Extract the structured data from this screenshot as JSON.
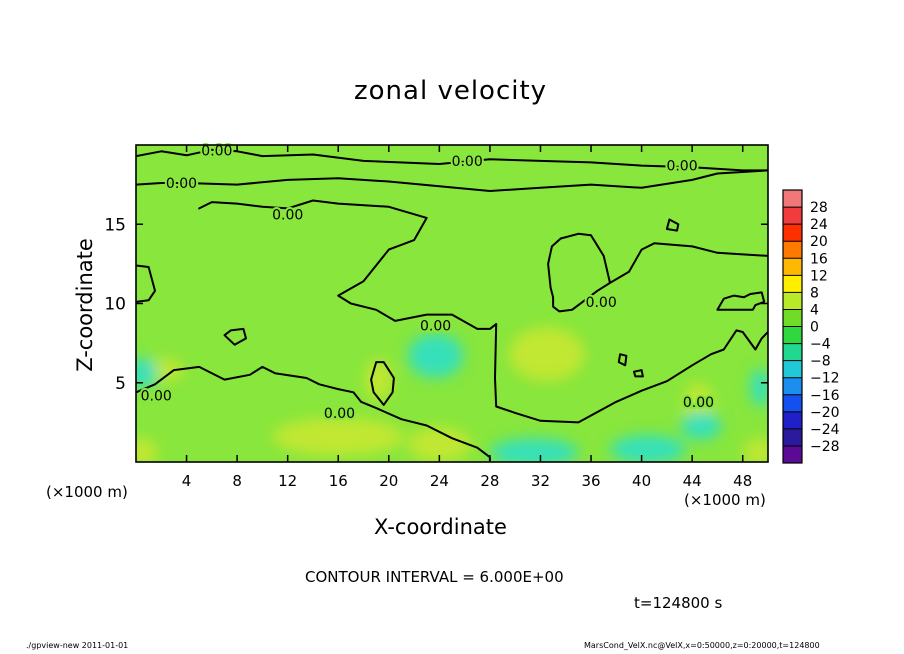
{
  "chart_data": {
    "type": "contour",
    "title": "zonal velocity",
    "xlabel": "X-coordinate",
    "ylabel": "Z-coordinate",
    "x_unit_note_left": "(×1000 m)",
    "x_unit_note_right": "(×1000 m)",
    "xlim": [
      0,
      50
    ],
    "ylim": [
      0,
      20
    ],
    "x_ticks": [
      4,
      8,
      12,
      16,
      20,
      24,
      28,
      32,
      36,
      40,
      44,
      48
    ],
    "y_ticks": [
      5,
      10,
      15
    ],
    "colorbar_levels": [
      28,
      24,
      20,
      16,
      12,
      8,
      4,
      0,
      -4,
      -8,
      -12,
      -16,
      -20,
      -24,
      -28
    ],
    "colorbar_colors": [
      "#f07878",
      "#f03c3c",
      "#ff3000",
      "#ff7a00",
      "#ffb800",
      "#ffee00",
      "#b8ea28",
      "#70dc28",
      "#30d840",
      "#20d890",
      "#20c8d8",
      "#1c8ef0",
      "#1450f0",
      "#2020c8",
      "#2c1a9c",
      "#5a0a94"
    ],
    "contour_label": "0.00",
    "contour_interval": "CONTOUR INTERVAL = 6.000E+00",
    "time_label": "t=124800 s",
    "footer_left": "./gpview-new   2011-01-01",
    "footer_right": "MarsCond_VelX.nc@VelX,x=0:50000,z=0:20000,t=124800",
    "regions": [
      {
        "kind": "positive",
        "x": 2.2,
        "y": 5.8,
        "rx": 1.6,
        "ry": 0.7
      },
      {
        "kind": "positive",
        "x": 19.2,
        "y": 5.2,
        "rx": 1.1,
        "ry": 1.3
      },
      {
        "kind": "positive",
        "x": 32.5,
        "y": 6.8,
        "rx": 3.0,
        "ry": 1.7
      },
      {
        "kind": "positive",
        "x": 0.5,
        "y": 0.6,
        "rx": 1.2,
        "ry": 0.9
      },
      {
        "kind": "positive",
        "x": 16,
        "y": 1.6,
        "rx": 5.2,
        "ry": 1.2
      },
      {
        "kind": "positive",
        "x": 24,
        "y": 1.1,
        "rx": 2.5,
        "ry": 1.1
      },
      {
        "kind": "positive",
        "x": 49.3,
        "y": 0.6,
        "rx": 1.2,
        "ry": 0.9
      },
      {
        "kind": "positive",
        "x": 44.5,
        "y": 3.6,
        "rx": 1.2,
        "ry": 1.4
      },
      {
        "kind": "negative",
        "x": 23.7,
        "y": 6.7,
        "rx": 2.2,
        "ry": 1.4
      },
      {
        "kind": "negative",
        "x": 31.5,
        "y": 0.6,
        "rx": 3.5,
        "ry": 0.9
      },
      {
        "kind": "negative",
        "x": 0.5,
        "y": 5.6,
        "rx": 1.2,
        "ry": 1.0
      },
      {
        "kind": "negative",
        "x": 44.7,
        "y": 2.3,
        "rx": 1.6,
        "ry": 0.9
      },
      {
        "kind": "negative",
        "x": 49.4,
        "y": 4.7,
        "rx": 0.8,
        "ry": 1.2
      },
      {
        "kind": "negative",
        "x": 40.5,
        "y": 0.8,
        "rx": 3.0,
        "ry": 0.9
      }
    ],
    "contours": [
      {
        "points": [
          [
            0,
            19.3
          ],
          [
            2,
            19.6
          ],
          [
            4,
            19.35
          ],
          [
            6,
            19.7
          ],
          [
            8,
            19.6
          ],
          [
            10,
            19.3
          ],
          [
            14,
            19.4
          ],
          [
            18,
            19.0
          ],
          [
            24,
            18.8
          ],
          [
            28,
            19.1
          ],
          [
            32,
            19.0
          ],
          [
            36,
            18.9
          ],
          [
            40,
            18.7
          ],
          [
            44,
            18.6
          ],
          [
            48,
            18.4
          ],
          [
            50,
            18.4
          ]
        ],
        "labels": [
          [
            6.4,
            19.65,
            "0.00"
          ],
          [
            26.2,
            19.0,
            "0.00"
          ],
          [
            43.2,
            18.7,
            "0.00"
          ]
        ]
      },
      {
        "points": [
          [
            0,
            17.5
          ],
          [
            2,
            17.6
          ],
          [
            4,
            17.6
          ],
          [
            8,
            17.5
          ],
          [
            12,
            17.8
          ],
          [
            16,
            17.9
          ],
          [
            20,
            17.7
          ],
          [
            24,
            17.4
          ],
          [
            28,
            17.1
          ],
          [
            32,
            17.3
          ],
          [
            36,
            17.5
          ],
          [
            40,
            17.3
          ],
          [
            44,
            17.8
          ],
          [
            46,
            18.2
          ],
          [
            50,
            18.4
          ]
        ],
        "labels": [
          [
            3.6,
            17.6,
            "0.00"
          ]
        ]
      },
      {
        "points": [
          [
            5,
            16.0
          ],
          [
            6,
            16.4
          ],
          [
            8,
            16.3
          ],
          [
            10,
            16.1
          ],
          [
            12,
            16.0
          ],
          [
            14,
            16.5
          ],
          [
            16,
            16.3
          ],
          [
            20,
            16.1
          ],
          [
            23,
            15.4
          ],
          [
            22,
            14.0
          ],
          [
            20,
            13.4
          ],
          [
            18,
            11.4
          ],
          [
            16,
            10.5
          ],
          [
            17,
            10.0
          ],
          [
            19,
            9.6
          ],
          [
            20.5,
            8.9
          ],
          [
            23,
            9.3
          ],
          [
            25,
            9.3
          ],
          [
            27,
            8.4
          ],
          [
            28,
            8.4
          ],
          [
            28.5,
            8.7
          ]
        ],
        "labels": [
          [
            12,
            15.6,
            "0.00"
          ],
          [
            23.7,
            8.6,
            "0.00"
          ]
        ]
      },
      {
        "points": [
          [
            50,
            13.0
          ],
          [
            48,
            13.1
          ],
          [
            46,
            13.2
          ],
          [
            44,
            13.6
          ],
          [
            41,
            13.8
          ],
          [
            40,
            13.4
          ],
          [
            39,
            12.0
          ],
          [
            37.5,
            11.3
          ],
          [
            36.5,
            10.8
          ],
          [
            35,
            9.9
          ],
          [
            34.5,
            9.6
          ],
          [
            33.5,
            9.5
          ],
          [
            33,
            9.8
          ],
          [
            33,
            10.4
          ],
          [
            32.8,
            11.0
          ],
          [
            32.6,
            12.5
          ],
          [
            32.9,
            13.6
          ],
          [
            33.6,
            14.1
          ],
          [
            35,
            14.4
          ],
          [
            36,
            14.3
          ],
          [
            37,
            13.0
          ],
          [
            37.5,
            11.3
          ]
        ],
        "labels": [
          [
            36.8,
            10.1,
            "0.00"
          ]
        ]
      },
      {
        "points": [
          [
            0,
            12.4
          ],
          [
            1,
            12.3
          ],
          [
            1.5,
            10.8
          ],
          [
            1,
            10.2
          ],
          [
            0,
            10.1
          ]
        ],
        "labels": []
      },
      {
        "points": [
          [
            0,
            4.4
          ],
          [
            1.5,
            4.9
          ],
          [
            3,
            5.8
          ],
          [
            5,
            6.0
          ],
          [
            7,
            5.2
          ],
          [
            9,
            5.5
          ],
          [
            10,
            6.0
          ],
          [
            11,
            5.6
          ],
          [
            13.5,
            5.3
          ],
          [
            14.5,
            4.9
          ],
          [
            16,
            4.6
          ],
          [
            17.2,
            4.4
          ],
          [
            17.8,
            3.8
          ],
          [
            19,
            3.4
          ],
          [
            21,
            2.7
          ],
          [
            23,
            2.3
          ],
          [
            25,
            1.5
          ],
          [
            27,
            0.9
          ],
          [
            28,
            0.3
          ],
          [
            28,
            0
          ]
        ],
        "labels": [
          [
            1.6,
            4.2,
            "0.00"
          ],
          [
            16.1,
            3.1,
            "0.00"
          ]
        ]
      },
      {
        "points": [
          [
            28.5,
            8.7
          ],
          [
            28.4,
            5.3
          ],
          [
            28.5,
            3.5
          ],
          [
            30,
            3.1
          ],
          [
            32,
            2.6
          ],
          [
            35,
            2.5
          ],
          [
            38,
            3.8
          ],
          [
            40,
            4.5
          ],
          [
            42,
            5.1
          ],
          [
            44,
            6.1
          ],
          [
            45.5,
            6.8
          ],
          [
            46.5,
            7.1
          ],
          [
            47.5,
            8.3
          ],
          [
            48,
            8.2
          ],
          [
            49,
            7.1
          ],
          [
            49.5,
            7.8
          ],
          [
            50,
            8.2
          ]
        ],
        "labels": [
          [
            44.5,
            3.8,
            "0.00"
          ]
        ]
      },
      {
        "points": [
          [
            7,
            8.0
          ],
          [
            7.5,
            8.3
          ],
          [
            8.5,
            8.4
          ],
          [
            8.7,
            7.8
          ],
          [
            7.8,
            7.4
          ],
          [
            7,
            8.0
          ]
        ],
        "labels": []
      },
      {
        "points": [
          [
            18.8,
            4.4
          ],
          [
            18.6,
            5.2
          ],
          [
            19,
            6.3
          ],
          [
            19.6,
            6.3
          ],
          [
            20.4,
            5.3
          ],
          [
            20.3,
            4.4
          ],
          [
            19.6,
            3.6
          ],
          [
            18.8,
            4.4
          ]
        ],
        "labels": []
      },
      {
        "points": [
          [
            38.2,
            6.3
          ],
          [
            38.3,
            6.8
          ],
          [
            38.8,
            6.7
          ],
          [
            38.7,
            6.1
          ],
          [
            38.2,
            6.3
          ]
        ],
        "labels": []
      },
      {
        "points": [
          [
            39.4,
            5.7
          ],
          [
            39.5,
            5.4
          ],
          [
            40.1,
            5.4
          ],
          [
            40,
            5.8
          ],
          [
            39.4,
            5.7
          ]
        ],
        "labels": []
      },
      {
        "points": [
          [
            42,
            14.7
          ],
          [
            42.8,
            14.6
          ],
          [
            42.9,
            15.0
          ],
          [
            42.2,
            15.3
          ],
          [
            42,
            14.7
          ]
        ],
        "labels": []
      },
      {
        "points": [
          [
            46,
            9.6
          ],
          [
            48.8,
            9.6
          ],
          [
            49,
            9.9
          ],
          [
            49.7,
            10.1
          ],
          [
            49.5,
            10.7
          ],
          [
            48.6,
            10.6
          ],
          [
            48.1,
            10.4
          ],
          [
            47.3,
            10.5
          ],
          [
            46.5,
            10.3
          ],
          [
            46,
            9.6
          ]
        ],
        "labels": []
      }
    ],
    "contour_colors": {
      "background": "#88e63c",
      "positive": "#c8e832",
      "negative": "#2ee0c6",
      "line": "#000000",
      "frame": "#000000"
    }
  }
}
